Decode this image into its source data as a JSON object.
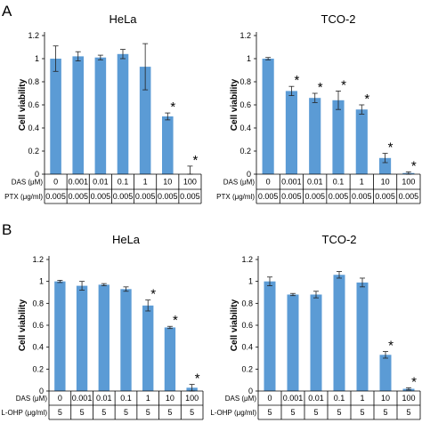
{
  "figure": {
    "panels": [
      {
        "label": "A"
      },
      {
        "label": "B"
      }
    ]
  },
  "chart_data": [
    {
      "type": "bar",
      "panel": "A",
      "title": "HeLa",
      "ylabel": "Cell viability",
      "ylim": [
        0,
        1.2
      ],
      "yticks": [
        "0",
        "0.2",
        "0.4",
        "0.6",
        "0.8",
        "1",
        "1.2"
      ],
      "categories": [
        "0",
        "0.001",
        "0.01",
        "0.1",
        "1",
        "10",
        "100"
      ],
      "values": [
        1.0,
        1.02,
        1.01,
        1.04,
        0.93,
        0.5,
        0.0
      ],
      "errors": [
        0.11,
        0.04,
        0.02,
        0.04,
        0.2,
        0.03,
        0.07
      ],
      "significant": [
        false,
        false,
        false,
        false,
        false,
        true,
        true
      ],
      "star_symbol": "*",
      "bar_color": "#5b9bd5",
      "table_rows": [
        {
          "label": "DAS (μM)",
          "cells": [
            "0",
            "0.001",
            "0.01",
            "0.1",
            "1",
            "10",
            "100"
          ]
        },
        {
          "label": "PTX (μg/ml)",
          "cells": [
            "0.005",
            "0.005",
            "0.005",
            "0.005",
            "0.005",
            "0.005",
            "0.005"
          ]
        }
      ]
    },
    {
      "type": "bar",
      "panel": "A",
      "title": "TCO-2",
      "ylabel": "Cell viability",
      "ylim": [
        0,
        1.2
      ],
      "yticks": [
        "0",
        "0.2",
        "0.4",
        "0.6",
        "0.8",
        "1",
        "1.2"
      ],
      "categories": [
        "0",
        "0.001",
        "0.01",
        "0.1",
        "1",
        "10",
        "100"
      ],
      "values": [
        1.0,
        0.72,
        0.66,
        0.64,
        0.56,
        0.14,
        0.01
      ],
      "errors": [
        0.01,
        0.04,
        0.04,
        0.08,
        0.04,
        0.04,
        0.01
      ],
      "significant": [
        false,
        true,
        true,
        true,
        true,
        true,
        true
      ],
      "star_symbol": "*",
      "bar_color": "#5b9bd5",
      "table_rows": [
        {
          "label": "DAS (μM)",
          "cells": [
            "0",
            "0.001",
            "0.01",
            "0.1",
            "1",
            "10",
            "100"
          ]
        },
        {
          "label": "PTX (μg/ml)",
          "cells": [
            "0.005",
            "0.005",
            "0.005",
            "0.005",
            "0.005",
            "0.005",
            "0.005"
          ]
        }
      ]
    },
    {
      "type": "bar",
      "panel": "B",
      "title": "HeLa",
      "ylabel": "Cell viability",
      "ylim": [
        0,
        1.2
      ],
      "yticks": [
        "0",
        "0.2",
        "0.4",
        "0.6",
        "0.8",
        "1",
        "1.2"
      ],
      "categories": [
        "0",
        "0.001",
        "0.01",
        "0.1",
        "1",
        "10",
        "100"
      ],
      "values": [
        1.0,
        0.96,
        0.97,
        0.93,
        0.78,
        0.58,
        0.03
      ],
      "errors": [
        0.01,
        0.04,
        0.01,
        0.02,
        0.05,
        0.01,
        0.03
      ],
      "significant": [
        false,
        false,
        false,
        false,
        true,
        true,
        true
      ],
      "star_symbol": "*",
      "bar_color": "#5b9bd5",
      "table_rows": [
        {
          "label": "DAS (μM)",
          "cells": [
            "0",
            "0.001",
            "0.01",
            "0.1",
            "1",
            "10",
            "100"
          ]
        },
        {
          "label": "L-OHP (μg/ml)",
          "cells": [
            "5",
            "5",
            "5",
            "5",
            "5",
            "5",
            "5"
          ]
        }
      ]
    },
    {
      "type": "bar",
      "panel": "B",
      "title": "TCO-2",
      "ylabel": "Cell viability",
      "ylim": [
        0,
        1.2
      ],
      "yticks": [
        "0",
        "0.2",
        "0.4",
        "0.6",
        "0.8",
        "1",
        "1.2"
      ],
      "categories": [
        "0",
        "0.001",
        "0.01",
        "0.1",
        "1",
        "10",
        "100"
      ],
      "values": [
        1.0,
        0.88,
        0.88,
        1.06,
        0.99,
        0.33,
        0.02
      ],
      "errors": [
        0.04,
        0.01,
        0.03,
        0.03,
        0.04,
        0.03,
        0.01
      ],
      "significant": [
        false,
        false,
        false,
        false,
        false,
        true,
        true
      ],
      "star_symbol": "*",
      "bar_color": "#5b9bd5",
      "table_rows": [
        {
          "label": "DAS (μM)",
          "cells": [
            "0",
            "0.001",
            "0.01",
            "0.1",
            "1",
            "10",
            "100"
          ]
        },
        {
          "label": "L-OHP (μg/ml)",
          "cells": [
            "5",
            "5",
            "5",
            "5",
            "5",
            "5",
            "5"
          ]
        }
      ]
    }
  ]
}
